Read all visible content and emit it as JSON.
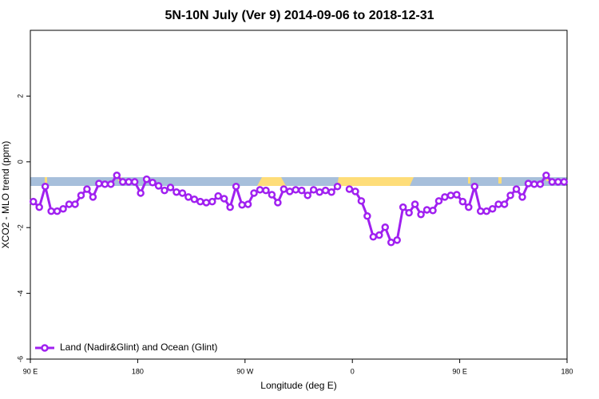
{
  "chart_data": {
    "type": "line",
    "title": "5N-10N July (Ver 9)   2014-09-06 to 2018-12-31",
    "x_label": "Longitude (deg E)",
    "y_label": "XCO2 - MLO trend (ppm)",
    "xlim": [
      90,
      540
    ],
    "ylim": [
      -6,
      4
    ],
    "xticks": [
      {
        "value": 90,
        "label": "90 E"
      },
      180,
      {
        "value": 270,
        "label": "90 W"
      },
      {
        "value": 360,
        "label": "0"
      },
      {
        "value": 450,
        "label": "90 E"
      },
      {
        "value": 540,
        "label": "180"
      }
    ],
    "yticks": [
      -6,
      -4,
      -2,
      0,
      2
    ],
    "legend": "bottom-left",
    "x": [
      92.5,
      97.5,
      102.5,
      107.5,
      112.5,
      117.5,
      122.5,
      127.5,
      132.5,
      137.5,
      142.5,
      147.5,
      152.5,
      157.5,
      162.5,
      167.5,
      172.5,
      177.5,
      182.5,
      187.5,
      192.5,
      197.5,
      202.5,
      207.5,
      212.5,
      217.5,
      222.5,
      227.5,
      232.5,
      237.5,
      242.5,
      247.5,
      252.5,
      257.5,
      262.5,
      267.5,
      272.5,
      277.5,
      282.5,
      287.5,
      292.5,
      297.5,
      302.5,
      307.5,
      312.5,
      317.5,
      322.5,
      327.5,
      332.5,
      337.5,
      342.5,
      347.5,
      352.5,
      357.5,
      362.5,
      367.5,
      372.5,
      377.5,
      382.5,
      387.5,
      392.5,
      397.5,
      402.5,
      407.5,
      412.5,
      417.5,
      422.5,
      427.5,
      432.5,
      437.5,
      442.5,
      447.5,
      452.5,
      457.5,
      462.5,
      467.5,
      472.5,
      477.5,
      482.5,
      487.5,
      492.5,
      497.5,
      502.5,
      507.5,
      512.5,
      517.5,
      522.5,
      527.5,
      532.5,
      537.5
    ],
    "series": [
      {
        "name": "Land (Nadir&Glint) and Ocean (Glint)",
        "color": "#a020f0",
        "values": [
          -1.21,
          -1.38,
          -0.75,
          -1.5,
          -1.5,
          -1.43,
          -1.29,
          -1.29,
          -1.02,
          -0.83,
          -1.07,
          -0.66,
          -0.68,
          -0.68,
          -0.41,
          -0.61,
          -0.61,
          -0.61,
          -0.95,
          -0.53,
          -0.63,
          -0.73,
          -0.87,
          -0.78,
          -0.92,
          -0.95,
          -1.07,
          -1.14,
          -1.21,
          -1.24,
          -1.21,
          -1.04,
          -1.12,
          -1.38,
          -0.75,
          -1.31,
          -1.29,
          -0.95,
          -0.85,
          -0.87,
          -1.0,
          -1.24,
          -0.83,
          -0.9,
          -0.85,
          -0.87,
          -1.02,
          -0.85,
          -0.92,
          -0.87,
          -0.92,
          -0.75,
          null,
          -0.83,
          -0.9,
          -1.19,
          -1.65,
          -2.28,
          -2.23,
          -1.99,
          -2.45,
          -2.38,
          -1.38,
          -1.55,
          -1.29,
          -1.6,
          -1.46,
          -1.48,
          -1.19,
          -1.07,
          -1.02,
          -1.0,
          -1.21,
          -1.38,
          -0.75,
          -1.5,
          -1.5,
          -1.43,
          -1.29,
          -1.29,
          -1.02,
          -0.83,
          -1.07,
          -0.66,
          -0.68,
          -0.68,
          -0.41,
          -0.61,
          -0.61,
          -0.61
        ]
      }
    ]
  }
}
